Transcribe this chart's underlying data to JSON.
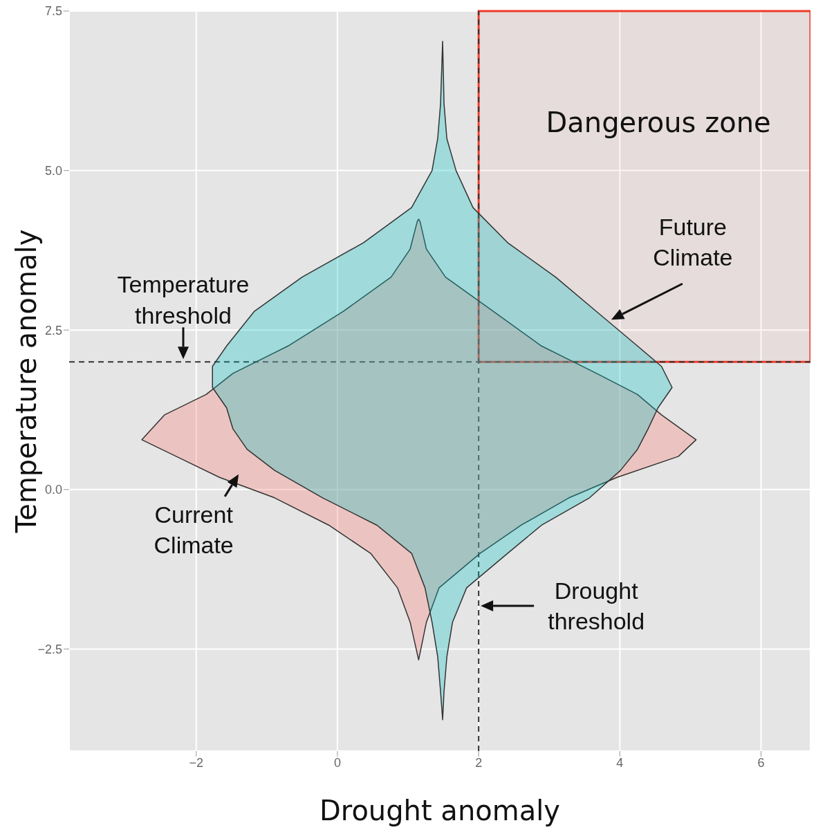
{
  "chart_data": {
    "type": "area",
    "xlabel": "Drought anomaly",
    "ylabel": "Temperature anomaly",
    "xlim": [
      -3.8,
      6.7
    ],
    "ylim": [
      -4.1,
      7.5
    ],
    "xticks": [
      -2,
      0,
      2,
      4,
      6
    ],
    "yticks": [
      -2.5,
      {
        "value": 0,
        "label": "0.0"
      },
      2.5,
      {
        "value": 5,
        "label": "5.0"
      },
      7.5
    ],
    "grid": true,
    "marker": "none",
    "series": [
      {
        "name": "Current Climate",
        "color": "#f8766d",
        "x": [
          1.15,
          1.17,
          1.26,
          1.53,
          2.21,
          2.89,
          3.67,
          4.25,
          4.59,
          5.08,
          4.83,
          3.96,
          3.28,
          2.6,
          2.02,
          1.44,
          1.26,
          1.15,
          1.03,
          0.85,
          0.47,
          -0.12,
          -0.89,
          -1.67,
          -2.77,
          -2.45,
          -1.86,
          -1.48,
          -0.7,
          0.08,
          0.76,
          1.03,
          1.13,
          1.15
        ],
        "values": [
          4.24,
          4.2,
          3.77,
          3.33,
          2.79,
          2.25,
          1.82,
          1.49,
          1.17,
          0.78,
          0.52,
          0.19,
          -0.13,
          -0.56,
          -1.0,
          -1.54,
          -2.08,
          -2.67,
          -2.08,
          -1.54,
          -1.0,
          -0.56,
          -0.13,
          0.19,
          0.78,
          1.17,
          1.49,
          1.82,
          2.25,
          2.79,
          3.33,
          3.77,
          4.2,
          4.24
        ]
      },
      {
        "name": "Future Climate",
        "color": "#00bfc4",
        "x": [
          1.49,
          1.51,
          1.55,
          1.68,
          1.92,
          2.41,
          3.09,
          3.67,
          4.25,
          4.59,
          4.74,
          4.54,
          4.4,
          4.25,
          4.01,
          3.57,
          2.89,
          2.41,
          1.83,
          1.63,
          1.55,
          1.51,
          1.49,
          1.46,
          1.42,
          1.34,
          1.24,
          1.05,
          0.56,
          -0.21,
          -0.89,
          -1.28,
          -1.48,
          -1.57,
          -1.77,
          -1.77,
          -1.57,
          -1.18,
          -0.5,
          0.37,
          1.05,
          1.34,
          1.42,
          1.46,
          1.49
        ],
        "values": [
          7.03,
          6.04,
          5.5,
          5.0,
          4.42,
          3.87,
          3.33,
          2.79,
          2.25,
          1.93,
          1.6,
          1.28,
          0.95,
          0.63,
          0.3,
          -0.13,
          -0.56,
          -1.0,
          -1.54,
          -2.08,
          -2.62,
          -3.16,
          -3.61,
          -3.16,
          -2.62,
          -2.08,
          -1.54,
          -1.0,
          -0.56,
          -0.13,
          0.3,
          0.63,
          0.95,
          1.28,
          1.6,
          1.93,
          2.25,
          2.79,
          3.33,
          3.87,
          4.42,
          5.0,
          5.5,
          6.04,
          7.03
        ]
      }
    ],
    "ref_lines": [
      {
        "axis": "y",
        "value": 2,
        "label": "Temperature threshold",
        "line_style": "dashed",
        "color": "#333333"
      },
      {
        "axis": "x",
        "value": 2,
        "label": "Drought threshold",
        "line_style": "dashed",
        "color": "#333333"
      }
    ],
    "bands": [
      {
        "axis": "x",
        "from": 2,
        "to": 6.7,
        "label": "Dangerous zone",
        "color": "#ee3b2b"
      }
    ]
  }
}
